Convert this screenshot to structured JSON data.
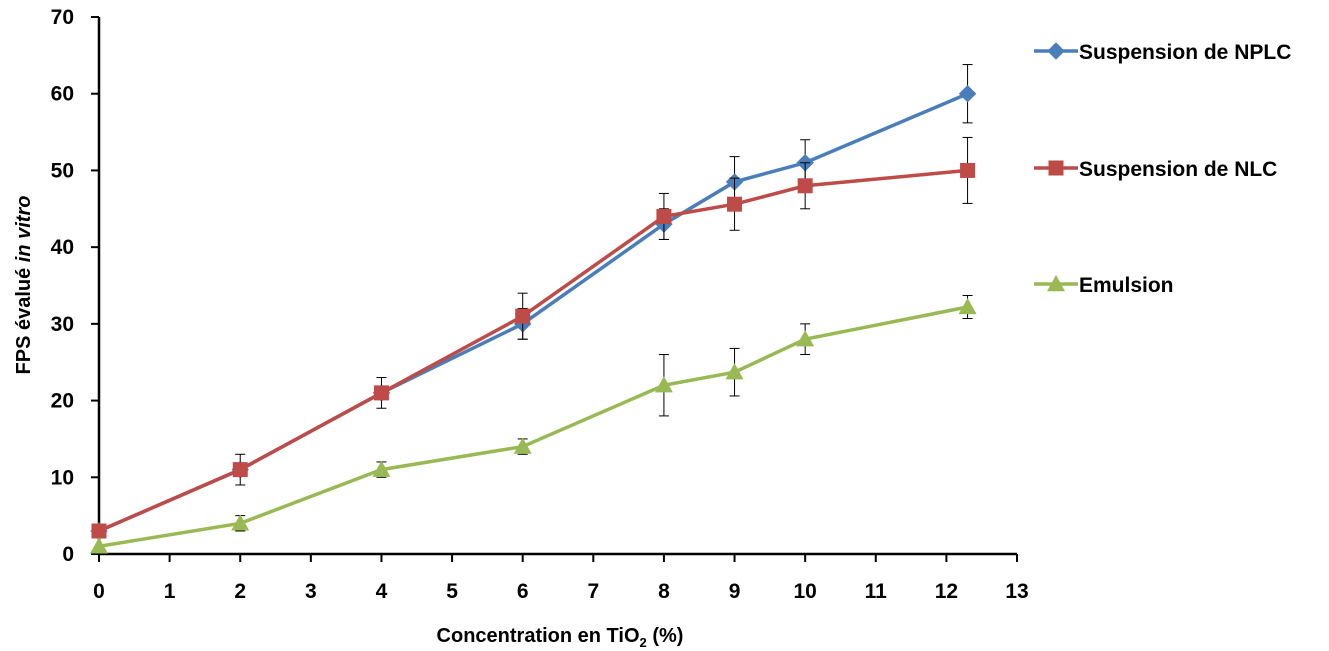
{
  "chart_data": {
    "type": "line",
    "xlabel": {
      "main": "Concentration en TiO",
      "subscript": "2",
      "suffix": " (%)"
    },
    "ylabel": {
      "main": "FPS évalué ",
      "italic": "in vitro"
    },
    "xlim": [
      0,
      13
    ],
    "ylim": [
      0,
      70
    ],
    "xticks": [
      0,
      1,
      2,
      3,
      4,
      5,
      6,
      7,
      8,
      9,
      10,
      11,
      12,
      13
    ],
    "yticks": [
      0,
      10,
      20,
      30,
      40,
      50,
      60,
      70
    ],
    "grid": false,
    "legend_position": "right",
    "series": [
      {
        "name": "Suspension de NPLC",
        "color": "#4a7ebb",
        "marker": "diamond",
        "x": [
          0,
          2,
          4,
          6,
          8,
          9,
          10,
          12.3
        ],
        "y": [
          3,
          11,
          21,
          30,
          43,
          48.5,
          51,
          60
        ],
        "error": [
          0,
          0,
          0,
          2,
          2,
          3.3,
          3,
          3.8
        ]
      },
      {
        "name": "Suspension de NLC",
        "color": "#be4b48",
        "marker": "square",
        "x": [
          0,
          2,
          4,
          6,
          8,
          9,
          10,
          12.3
        ],
        "y": [
          3,
          11,
          21,
          31,
          44,
          45.6,
          48,
          50
        ],
        "error": [
          0,
          2,
          2,
          3,
          3,
          3.4,
          3,
          4.3
        ]
      },
      {
        "name": "Emulsion",
        "color": "#98b954",
        "marker": "triangle",
        "x": [
          0,
          2,
          4,
          6,
          8,
          9,
          10,
          12.3
        ],
        "y": [
          1,
          4,
          11,
          14,
          22,
          23.7,
          28,
          32.2
        ],
        "error": [
          0,
          1,
          1,
          1,
          4,
          3.1,
          2,
          1.5
        ]
      }
    ]
  }
}
